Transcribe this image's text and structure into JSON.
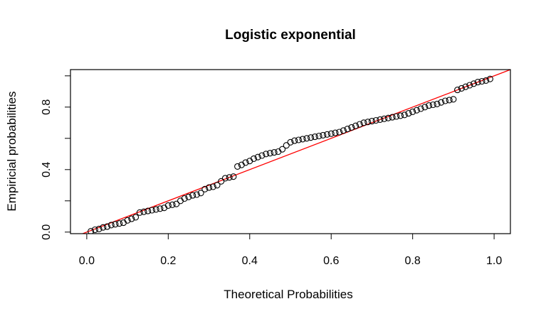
{
  "chart_data": {
    "type": "scatter",
    "title": "Logistic exponential",
    "xlabel": "Theoretical Probabilities",
    "ylabel": "Empiricial probabilities",
    "xlim": [
      -0.04,
      1.04
    ],
    "ylim": [
      -0.01,
      1.04
    ],
    "xticks": [
      0.0,
      0.2,
      0.4,
      0.6,
      0.8,
      1.0
    ],
    "xtick_labels": [
      "0.0",
      "0.2",
      "0.4",
      "0.6",
      "0.8",
      "1.0"
    ],
    "yticks": [
      0.0,
      0.2,
      0.4,
      0.6,
      0.8,
      1.0
    ],
    "ytick_labels": [
      "0.0",
      "0.4",
      "0.8"
    ],
    "ytick_labeled": [
      0.0,
      0.4,
      0.8
    ],
    "grid": false,
    "reference_line": {
      "intercept": 0,
      "slope": 1,
      "color": "#ff0000"
    },
    "series": [
      {
        "x": [
          0.01,
          0.02,
          0.03,
          0.04,
          0.05,
          0.06,
          0.07,
          0.08,
          0.09,
          0.1,
          0.11,
          0.12,
          0.13,
          0.14,
          0.15,
          0.16,
          0.17,
          0.18,
          0.19,
          0.2,
          0.21,
          0.22,
          0.23,
          0.24,
          0.25,
          0.26,
          0.27,
          0.28,
          0.29,
          0.3,
          0.31,
          0.32,
          0.33,
          0.34,
          0.35,
          0.36,
          0.37,
          0.38,
          0.39,
          0.4,
          0.41,
          0.42,
          0.43,
          0.44,
          0.45,
          0.46,
          0.47,
          0.48,
          0.49,
          0.5,
          0.51,
          0.52,
          0.53,
          0.54,
          0.55,
          0.56,
          0.57,
          0.58,
          0.59,
          0.6,
          0.61,
          0.62,
          0.63,
          0.64,
          0.65,
          0.66,
          0.67,
          0.68,
          0.69,
          0.7,
          0.71,
          0.72,
          0.73,
          0.74,
          0.75,
          0.76,
          0.77,
          0.78,
          0.79,
          0.8,
          0.81,
          0.82,
          0.83,
          0.84,
          0.85,
          0.86,
          0.87,
          0.88,
          0.89,
          0.9,
          0.91,
          0.92,
          0.93,
          0.94,
          0.95,
          0.96,
          0.97,
          0.98,
          0.99
        ],
        "y": [
          0.005,
          0.015,
          0.02,
          0.03,
          0.035,
          0.045,
          0.05,
          0.055,
          0.06,
          0.075,
          0.085,
          0.095,
          0.125,
          0.13,
          0.135,
          0.14,
          0.145,
          0.15,
          0.155,
          0.17,
          0.175,
          0.18,
          0.2,
          0.215,
          0.225,
          0.235,
          0.24,
          0.25,
          0.275,
          0.285,
          0.29,
          0.3,
          0.325,
          0.345,
          0.35,
          0.355,
          0.42,
          0.43,
          0.445,
          0.455,
          0.47,
          0.48,
          0.49,
          0.5,
          0.505,
          0.51,
          0.515,
          0.53,
          0.555,
          0.575,
          0.585,
          0.59,
          0.595,
          0.6,
          0.605,
          0.61,
          0.615,
          0.62,
          0.625,
          0.63,
          0.635,
          0.64,
          0.65,
          0.66,
          0.67,
          0.68,
          0.69,
          0.7,
          0.705,
          0.71,
          0.715,
          0.72,
          0.725,
          0.73,
          0.735,
          0.74,
          0.745,
          0.75,
          0.76,
          0.77,
          0.78,
          0.79,
          0.8,
          0.81,
          0.815,
          0.82,
          0.83,
          0.84,
          0.845,
          0.85,
          0.91,
          0.92,
          0.93,
          0.94,
          0.95,
          0.96,
          0.965,
          0.97,
          0.98
        ]
      }
    ]
  }
}
